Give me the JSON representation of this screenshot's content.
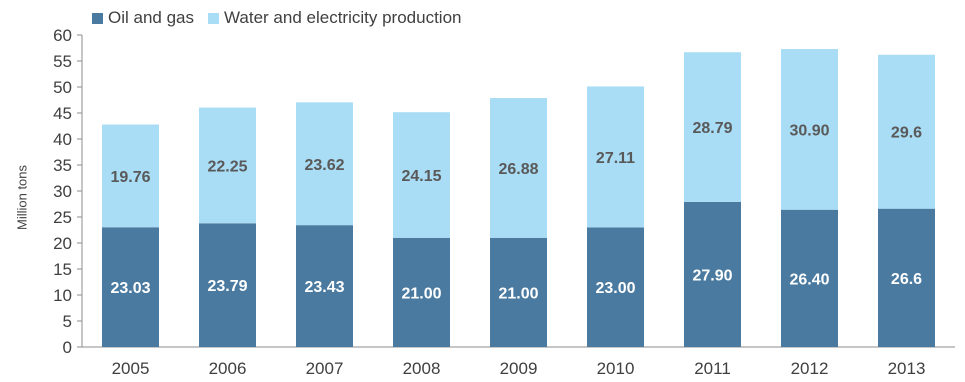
{
  "chart_data": {
    "type": "bar",
    "stacked": true,
    "categories": [
      "2005",
      "2006",
      "2007",
      "2008",
      "2009",
      "2010",
      "2011",
      "2012",
      "2013"
    ],
    "series": [
      {
        "name": "Oil and gas",
        "color": "#4a7aa0",
        "values": [
          23.03,
          23.79,
          23.43,
          21.0,
          21.0,
          23.0,
          27.9,
          26.4,
          26.6
        ],
        "labels": [
          "23.03",
          "23.79",
          "23.43",
          "21.00",
          "21.00",
          "23.00",
          "27.90",
          "26.40",
          "26.6"
        ]
      },
      {
        "name": "Water and electricity production",
        "color": "#a9dcf5",
        "values": [
          19.76,
          22.25,
          23.62,
          24.15,
          26.88,
          27.11,
          28.79,
          30.9,
          29.6
        ],
        "labels": [
          "19.76",
          "22.25",
          "23.62",
          "24.15",
          "26.88",
          "27.11",
          "28.79",
          "30.90",
          "29.6"
        ]
      }
    ],
    "ylabel": "Million tons",
    "ylim": [
      0,
      60
    ],
    "yticks": [
      "0",
      "5",
      "10",
      "15",
      "20",
      "25",
      "30",
      "35",
      "40",
      "45",
      "50",
      "55",
      "60"
    ],
    "grid": false,
    "legend_position": "top-left"
  }
}
